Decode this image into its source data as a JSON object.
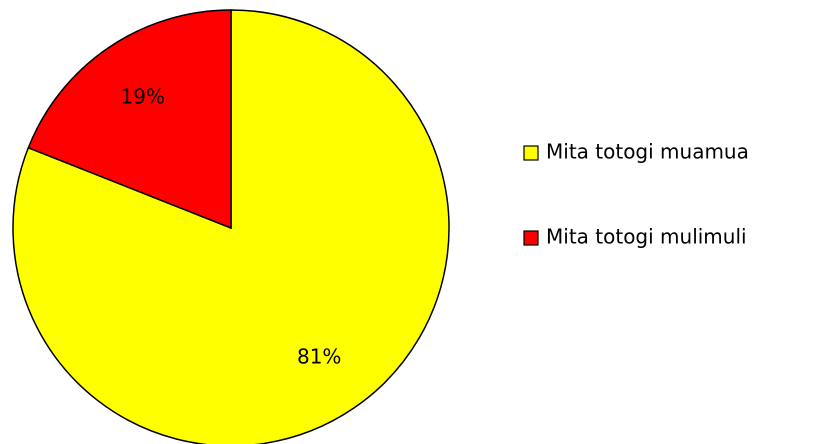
{
  "chart_data": {
    "type": "pie",
    "categories": [
      "Mita totogi muamua",
      "Mita totogi mulimuli"
    ],
    "values": [
      81,
      19
    ],
    "value_labels": [
      "81%",
      "19%"
    ],
    "colors": [
      "#ffff00",
      "#ff0000"
    ],
    "legend": "right"
  }
}
